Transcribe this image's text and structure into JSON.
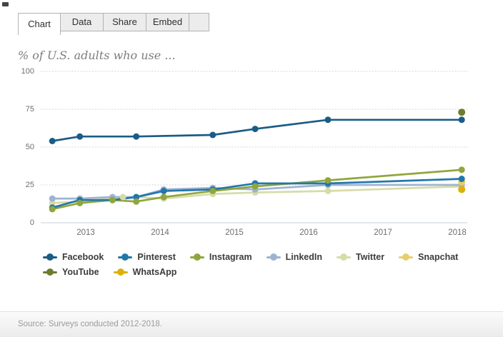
{
  "tabs": {
    "items": [
      {
        "label": "Chart",
        "active": true
      },
      {
        "label": "Data",
        "active": false
      },
      {
        "label": "Share",
        "active": false
      },
      {
        "label": "Embed",
        "active": false
      }
    ]
  },
  "title": "% of U.S. adults who use ...",
  "footer": {
    "source": "Source: Surveys conducted 2012-2018."
  },
  "chart_data": {
    "type": "line",
    "title": "% of U.S. adults who use ...",
    "xlabel": "",
    "ylabel": "",
    "x_ticks": [
      2013,
      2014,
      2015,
      2016,
      2017,
      2018
    ],
    "y_ticks": [
      0,
      25,
      50,
      75,
      100
    ],
    "ylim": [
      0,
      100
    ],
    "grid": "dotted horizontal",
    "legend_position": "bottom",
    "series": [
      {
        "name": "Facebook",
        "color": "#1b5c85",
        "points": [
          [
            2012.55,
            54
          ],
          [
            2012.92,
            57
          ],
          [
            2013.68,
            57
          ],
          [
            2014.71,
            58
          ],
          [
            2015.28,
            62
          ],
          [
            2016.26,
            68
          ],
          [
            2018.06,
            68
          ]
        ]
      },
      {
        "name": "Pinterest",
        "color": "#2277aa",
        "points": [
          [
            2012.55,
            10
          ],
          [
            2012.92,
            15
          ],
          [
            2013.36,
            15
          ],
          [
            2013.68,
            17
          ],
          [
            2014.05,
            21
          ],
          [
            2014.71,
            22
          ],
          [
            2015.28,
            26
          ],
          [
            2016.26,
            26
          ],
          [
            2018.06,
            29
          ]
        ]
      },
      {
        "name": "Instagram",
        "color": "#90a63c",
        "points": [
          [
            2012.55,
            9
          ],
          [
            2012.92,
            13
          ],
          [
            2013.36,
            15
          ],
          [
            2013.68,
            14
          ],
          [
            2014.05,
            17
          ],
          [
            2014.71,
            21
          ],
          [
            2015.28,
            24
          ],
          [
            2016.26,
            28
          ],
          [
            2018.06,
            35
          ]
        ]
      },
      {
        "name": "LinkedIn",
        "color": "#9fb3d1",
        "points": [
          [
            2012.55,
            16
          ],
          [
            2012.92,
            16
          ],
          [
            2013.36,
            17
          ],
          [
            2013.68,
            17
          ],
          [
            2014.05,
            22
          ],
          [
            2014.71,
            23
          ],
          [
            2015.28,
            22
          ],
          [
            2016.26,
            25
          ],
          [
            2018.06,
            25
          ]
        ]
      },
      {
        "name": "Twitter",
        "color": "#d6dca7",
        "points": [
          [
            2012.55,
            13
          ],
          [
            2012.92,
            14
          ],
          [
            2013.36,
            16
          ],
          [
            2013.5,
            17
          ],
          [
            2013.68,
            17
          ],
          [
            2014.05,
            16
          ],
          [
            2014.71,
            19
          ],
          [
            2015.28,
            20
          ],
          [
            2016.26,
            21
          ],
          [
            2018.06,
            24
          ]
        ]
      },
      {
        "name": "Snapchat",
        "color": "#e9cd6d",
        "points": [
          [
            2018.06,
            27
          ]
        ]
      },
      {
        "name": "YouTube",
        "color": "#6d7c2f",
        "points": [
          [
            2018.06,
            73
          ]
        ]
      },
      {
        "name": "WhatsApp",
        "color": "#ddb00c",
        "points": [
          [
            2018.06,
            22
          ]
        ]
      }
    ],
    "legend_order": [
      "Facebook",
      "Pinterest",
      "Instagram",
      "LinkedIn",
      "Twitter",
      "Snapchat",
      "YouTube",
      "WhatsApp"
    ],
    "line_draw_order": [
      "Twitter",
      "LinkedIn",
      "Instagram",
      "Pinterest",
      "Facebook"
    ],
    "dot_draw_order": [
      "Twitter",
      "LinkedIn",
      "Snapchat",
      "WhatsApp",
      "Pinterest",
      "Instagram",
      "Facebook",
      "YouTube"
    ]
  }
}
